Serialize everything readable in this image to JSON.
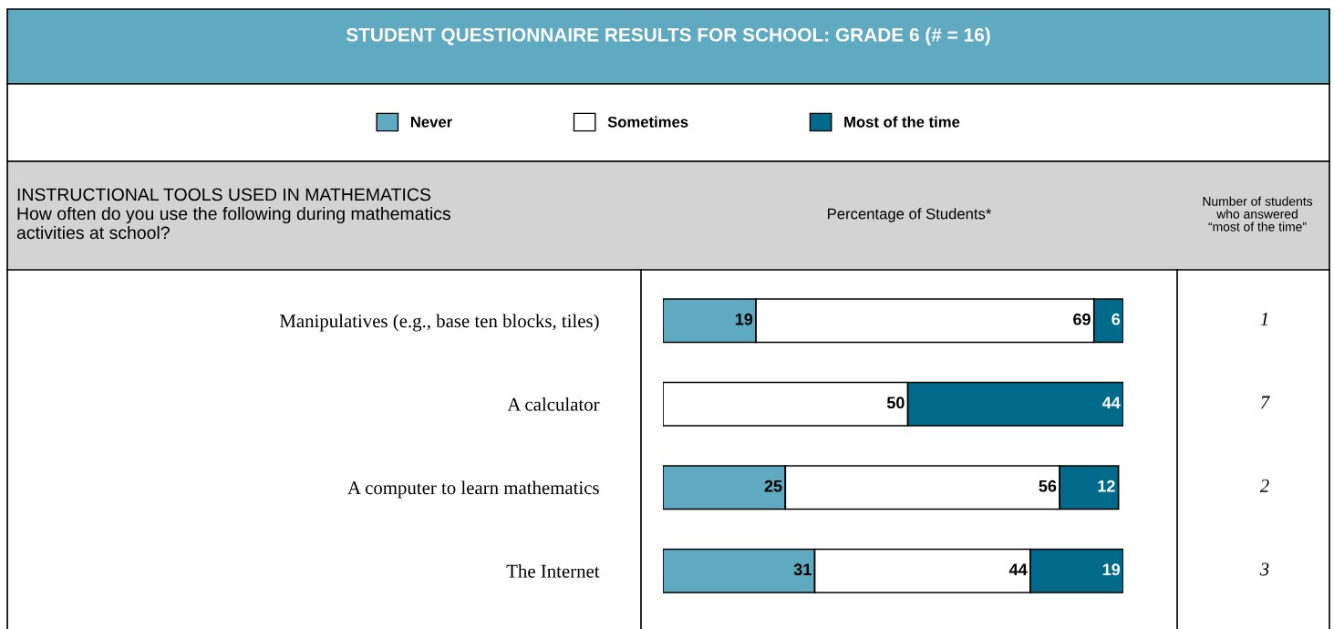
{
  "chart_data": {
    "type": "bar",
    "orientation": "horizontal",
    "stacked": true,
    "title": "STUDENT QUESTIONNAIRE RESULTS FOR SCHOOL: GRADE 6 (# = 16)",
    "subtitle": "INSTRUCTIONAL TOOLS USED IN MATHEMATICS\nHow often do you use the following during mathematics\nactivities at school?",
    "xlabel": "Percentage of Students*",
    "categories": [
      "Manipulatives (e.g., base ten blocks, tiles)",
      "A calculator",
      "A computer to learn mathematics",
      "The Internet"
    ],
    "series": [
      {
        "name": "Never",
        "color": "#5fa9c1",
        "values": [
          19,
          0,
          25,
          31
        ],
        "value_labels": [
          "19",
          null,
          "25",
          "31"
        ]
      },
      {
        "name": "Sometimes",
        "color": "#ffffff",
        "values": [
          69,
          50,
          56,
          44
        ],
        "value_labels": [
          "69",
          "50",
          "56",
          "44"
        ]
      },
      {
        "name": "Most of the time",
        "color": "#006a8a",
        "values": [
          6,
          44,
          12,
          19
        ],
        "value_labels": [
          "6",
          "44",
          "12",
          "19"
        ]
      }
    ],
    "annotations": [
      "Number of students\nwho answered\n“most of the time”",
      "1",
      "7",
      "2",
      "3"
    ],
    "legend": "top",
    "tick_labels": "y",
    "grid": false
  }
}
